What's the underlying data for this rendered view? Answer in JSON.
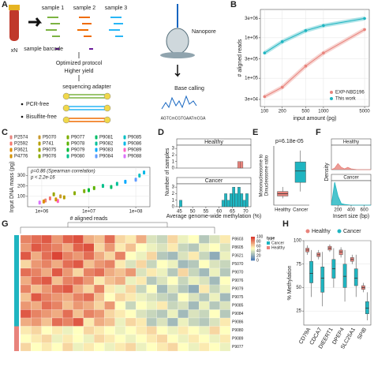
{
  "panels": {
    "labels": [
      "A",
      "B",
      "C",
      "D",
      "E",
      "F",
      "G",
      "H"
    ]
  },
  "diagram": {
    "tube_count": "xN",
    "samples": [
      "sample 1",
      "sample 2",
      "sample 3"
    ],
    "barcode": "sample barcode",
    "protocol": "Optimized protocol",
    "yield": "Higher yield",
    "adapter": "sequencing adapter",
    "features": [
      "PCR-free",
      "Bisulfite-free"
    ],
    "nanopore": "Nanopore",
    "basecalling": "Base calling",
    "sequence": "AGTCmCGTGAATmCGA"
  },
  "chart_data": [
    {
      "type": "line",
      "x": [
        100,
        200,
        500,
        1000,
        5000
      ],
      "xlog": true,
      "ylog": true,
      "xlim": [
        85,
        6000
      ],
      "ylim": [
        20000,
        5000000
      ],
      "xticks": [
        100,
        200,
        500,
        1000,
        5000
      ],
      "yticks": [
        {
          "value": 30000,
          "label": "3e+04"
        },
        {
          "value": 100000,
          "label": "1e+05"
        },
        {
          "value": 300000,
          "label": "3e+05"
        },
        {
          "value": 1000000,
          "label": "1e+06"
        },
        {
          "value": 3000000,
          "label": "3e+06"
        }
      ],
      "xlabel": "input amount (pg)",
      "ylabel": "# aligned reads",
      "legend": "bottom-right",
      "series": [
        {
          "name": "EXP-NBD196",
          "color": "#e8837c",
          "values": [
            35000,
            60000,
            200000,
            420000,
            1600000
          ]
        },
        {
          "name": "This work",
          "color": "#1fb5c1",
          "values": [
            420000,
            800000,
            1500000,
            2000000,
            3000000
          ]
        }
      ]
    },
    {
      "type": "scatter",
      "xlog": true,
      "xlim": [
        500000,
        200000000
      ],
      "ylim": [
        0,
        380
      ],
      "xticks": [
        {
          "value": 1000000,
          "label": "1e+06"
        },
        {
          "value": 10000000,
          "label": "1e+07"
        },
        {
          "value": 100000000,
          "label": "1e+08"
        }
      ],
      "yticks": [
        100,
        200,
        300
      ],
      "xlabel": "# aligned reads",
      "ylabel": "Input DNA mass (pg)",
      "annotations": [
        "ρ=0.86 (Spearman correlation)",
        "p < 2.2e-16"
      ],
      "series": [
        {
          "name": "P2574",
          "color": "#e8837c",
          "x": [
            1200000
          ],
          "values": [
            60
          ]
        },
        {
          "name": "P5070",
          "color": "#c99a2e",
          "x": [
            2500000
          ],
          "values": [
            100
          ]
        },
        {
          "name": "P9077",
          "color": "#7cae00",
          "x": [
            8000000
          ],
          "values": [
            150
          ]
        },
        {
          "name": "P9081",
          "color": "#00be67",
          "x": [
            30000000
          ],
          "values": [
            190
          ]
        },
        {
          "name": "P9085",
          "color": "#00bfc4",
          "x": [
            120000000
          ],
          "values": [
            300
          ]
        },
        {
          "name": "P2592",
          "color": "#f8766d",
          "x": [
            1500000
          ],
          "values": [
            80
          ]
        },
        {
          "name": "P741",
          "color": "#b79f00",
          "x": [
            3000000
          ],
          "values": [
            90
          ]
        },
        {
          "name": "P9078",
          "color": "#5bb300",
          "x": [
            13000000
          ],
          "values": [
            180
          ]
        },
        {
          "name": "P9082",
          "color": "#00c19a",
          "x": [
            40000000
          ],
          "values": [
            220
          ]
        },
        {
          "name": "P9086",
          "color": "#00b8e7",
          "x": [
            150000000
          ],
          "values": [
            330
          ]
        },
        {
          "name": "P3621",
          "color": "#de8c00",
          "x": [
            1100000
          ],
          "values": [
            50
          ]
        },
        {
          "name": "P9075",
          "color": "#9ca700",
          "x": [
            1800000
          ],
          "values": [
            120
          ]
        },
        {
          "name": "P9079",
          "color": "#00ba38",
          "x": [
            10000000
          ],
          "values": [
            160
          ]
        },
        {
          "name": "P9083",
          "color": "#00a9ff",
          "x": [
            60000000
          ],
          "values": [
            240
          ]
        },
        {
          "name": "P9089",
          "color": "#ff61c3",
          "x": [
            2200000
          ],
          "values": [
            55
          ]
        },
        {
          "name": "P4776",
          "color": "#d39200",
          "x": [
            2000000
          ],
          "values": [
            70
          ]
        },
        {
          "name": "P9076",
          "color": "#8aab00",
          "x": [
            5000000
          ],
          "values": [
            130
          ]
        },
        {
          "name": "P9080",
          "color": "#00c08b",
          "x": [
            20000000
          ],
          "values": [
            200
          ]
        },
        {
          "name": "P9084",
          "color": "#619cff",
          "x": [
            100000000
          ],
          "values": [
            260
          ]
        },
        {
          "name": "P9088",
          "color": "#db72fb",
          "x": [
            900000
          ],
          "values": [
            40
          ]
        }
      ]
    },
    {
      "type": "histogram",
      "bins": [
        44,
        45,
        46,
        47,
        48,
        49,
        50,
        51,
        52,
        53,
        54,
        55,
        56,
        57,
        58,
        59,
        60,
        61,
        62,
        63,
        64,
        65,
        66,
        67,
        68,
        69,
        70,
        71,
        72
      ],
      "xlim": [
        44,
        72
      ],
      "xticks": [
        45,
        50,
        55,
        60,
        65,
        70
      ],
      "ylim": [
        0,
        3.5
      ],
      "yticks": [
        0,
        1,
        2,
        3
      ],
      "xlabel": "Average genome-wide methylation (%)",
      "ylabel": "Number of samples",
      "facets": [
        {
          "label": "Healthy",
          "color": "#e8837c",
          "counts": [
            0,
            0,
            0,
            0,
            0,
            0,
            0,
            0,
            0,
            0,
            0,
            0,
            0,
            0,
            0,
            0,
            0,
            0,
            0,
            0,
            0,
            0,
            0,
            1,
            1,
            0,
            0,
            0
          ]
        },
        {
          "label": "Cancer",
          "color": "#1fb5c1",
          "counts": [
            0,
            1,
            0,
            0,
            0,
            0,
            0,
            0,
            0,
            0,
            0,
            0,
            0,
            0,
            0,
            0,
            0,
            1,
            2,
            1,
            2,
            3,
            2,
            3,
            2,
            1,
            2,
            0
          ]
        }
      ]
    },
    {
      "type": "box",
      "categories": [
        "Healthy",
        "Cancer"
      ],
      "colors": [
        "#e8837c",
        "#1fb5c1"
      ],
      "ylim": [
        0,
        13
      ],
      "ylabel": [
        "Mononucleosome to",
        "Dinucleosome ratio"
      ],
      "annotations": [
        "p=6.18e-05"
      ],
      "boxes": [
        {
          "min": 1.5,
          "q1": 2,
          "median": 2.5,
          "q3": 3,
          "max": 4
        },
        {
          "min": 3,
          "q1": 5,
          "median": 7.5,
          "q3": 9.5,
          "max": 12
        }
      ]
    },
    {
      "type": "density",
      "x": [
        100,
        150,
        200,
        250,
        300,
        350,
        400,
        450,
        500,
        550,
        600,
        650,
        700
      ],
      "xlim": [
        100,
        700
      ],
      "xticks": [
        200,
        400,
        600
      ],
      "ylim": [
        0,
        0.032
      ],
      "xlabel": "Insert size (bp)",
      "ylabel": "Density",
      "facets": [
        {
          "label": "Healthy",
          "color": "#e8837c",
          "values": [
            0,
            0.002,
            0.008,
            0.003,
            0.001,
            0.003,
            0.001,
            0.0005,
            0,
            0,
            0,
            0,
            0
          ]
        },
        {
          "label": "Cancer",
          "color": "#1fb5c1",
          "values": [
            0,
            0.03,
            0.012,
            0.002,
            0.001,
            0.0005,
            0,
            0,
            0,
            0,
            0,
            0,
            0
          ]
        }
      ]
    },
    {
      "type": "heatmap",
      "rows": [
        "P8603",
        "P8605",
        "P3621",
        "P5070",
        "P9070",
        "P9076",
        "P9079",
        "P9075",
        "P9085",
        "P9084",
        "P9086",
        "P9080",
        "P9089",
        "P9077"
      ],
      "row_types": [
        "Cancer",
        "Cancer",
        "Cancer",
        "Cancer",
        "Cancer",
        "Cancer",
        "Cancer",
        "Cancer",
        "Cancer",
        "Cancer",
        "Cancer",
        "Healthy",
        "Healthy",
        "Healthy"
      ],
      "colors": [
        "#4575b4",
        "#ffffbf",
        "#d73027"
      ],
      "colorbar": {
        "lim": [
          0,
          100
        ],
        "ticks": [
          0,
          20,
          40,
          60,
          80,
          100
        ]
      },
      "legend_title": "type",
      "legend": [
        {
          "name": "Cancer",
          "color": "#1fb5c1"
        },
        {
          "name": "Healthy",
          "color": "#e8837c"
        }
      ],
      "values": [
        [
          80,
          85,
          90,
          75,
          88,
          92,
          70,
          65,
          85,
          60,
          55,
          70,
          40,
          35,
          60,
          45,
          50,
          30,
          40,
          55
        ],
        [
          75,
          90,
          85,
          80,
          70,
          88,
          92,
          60,
          75,
          55,
          65,
          50,
          45,
          40,
          55,
          35,
          30,
          45,
          50,
          40
        ],
        [
          90,
          70,
          85,
          95,
          80,
          75,
          85,
          70,
          60,
          80,
          50,
          45,
          60,
          30,
          25,
          40,
          55,
          35,
          20,
          45
        ],
        [
          60,
          75,
          80,
          70,
          85,
          90,
          65,
          75,
          80,
          55,
          40,
          60,
          35,
          50,
          45,
          25,
          30,
          50,
          40,
          35
        ],
        [
          85,
          80,
          70,
          90,
          75,
          60,
          80,
          85,
          70,
          65,
          75,
          40,
          55,
          45,
          30,
          60,
          35,
          25,
          45,
          30
        ],
        [
          70,
          85,
          90,
          65,
          80,
          85,
          75,
          55,
          65,
          70,
          45,
          55,
          30,
          40,
          50,
          35,
          45,
          40,
          25,
          50
        ],
        [
          80,
          65,
          75,
          85,
          90,
          70,
          60,
          80,
          55,
          45,
          60,
          35,
          50,
          25,
          40,
          30,
          20,
          55,
          35,
          45
        ],
        [
          65,
          90,
          80,
          75,
          70,
          80,
          85,
          65,
          50,
          60,
          55,
          45,
          40,
          35,
          30,
          50,
          40,
          30,
          45,
          25
        ],
        [
          75,
          70,
          85,
          80,
          65,
          75,
          70,
          60,
          75,
          50,
          35,
          50,
          45,
          55,
          35,
          40,
          25,
          45,
          30,
          40
        ],
        [
          90,
          80,
          75,
          70,
          85,
          65,
          80,
          75,
          60,
          55,
          50,
          40,
          35,
          30,
          45,
          25,
          40,
          35,
          50,
          30
        ],
        [
          70,
          75,
          65,
          85,
          80,
          90,
          55,
          70,
          65,
          45,
          60,
          55,
          30,
          40,
          25,
          45,
          35,
          30,
          40,
          55
        ],
        [
          55,
          60,
          50,
          55,
          45,
          50,
          60,
          55,
          50,
          45,
          50,
          55,
          60,
          50,
          45,
          55,
          50,
          45,
          60,
          50
        ],
        [
          50,
          55,
          60,
          45,
          55,
          50,
          45,
          60,
          55,
          50,
          45,
          50,
          55,
          60,
          50,
          45,
          55,
          50,
          45,
          55
        ],
        [
          60,
          50,
          55,
          50,
          60,
          45,
          55,
          50,
          45,
          55,
          60,
          45,
          50,
          55,
          60,
          50,
          45,
          55,
          50,
          45
        ]
      ]
    },
    {
      "type": "groupbox",
      "categories": [
        "CD79A",
        "CDCA7",
        "DIEERT1",
        "DPEP4",
        "SLC25A1",
        "SPIB"
      ],
      "ylim": [
        10,
        100
      ],
      "yticks": [
        25,
        50,
        75,
        100
      ],
      "ylabel": "% Methylation",
      "legend": "top",
      "series": [
        {
          "name": "Healthy",
          "color": "#e8837c",
          "boxes": [
            {
              "min": 85,
              "q1": 88,
              "median": 90,
              "q3": 92,
              "max": 95
            },
            {
              "min": 80,
              "q1": 83,
              "median": 85,
              "q3": 87,
              "max": 90
            },
            {
              "min": 88,
              "q1": 90,
              "median": 92,
              "q3": 94,
              "max": 96
            },
            {
              "min": 82,
              "q1": 85,
              "median": 88,
              "q3": 90,
              "max": 93
            },
            {
              "min": 75,
              "q1": 78,
              "median": 80,
              "q3": 82,
              "max": 85
            },
            {
              "min": 45,
              "q1": 48,
              "median": 50,
              "q3": 52,
              "max": 55
            }
          ]
        },
        {
          "name": "Cancer",
          "color": "#1fb5c1",
          "boxes": [
            {
              "min": 40,
              "q1": 55,
              "median": 65,
              "q3": 78,
              "max": 90
            },
            {
              "min": 30,
              "q1": 45,
              "median": 60,
              "q3": 72,
              "max": 88
            },
            {
              "min": 50,
              "q1": 60,
              "median": 70,
              "q3": 80,
              "max": 92
            },
            {
              "min": 35,
              "q1": 50,
              "median": 62,
              "q3": 75,
              "max": 90
            },
            {
              "min": 40,
              "q1": 52,
              "median": 60,
              "q3": 70,
              "max": 85
            },
            {
              "min": 15,
              "q1": 22,
              "median": 28,
              "q3": 35,
              "max": 45
            }
          ]
        }
      ]
    }
  ]
}
